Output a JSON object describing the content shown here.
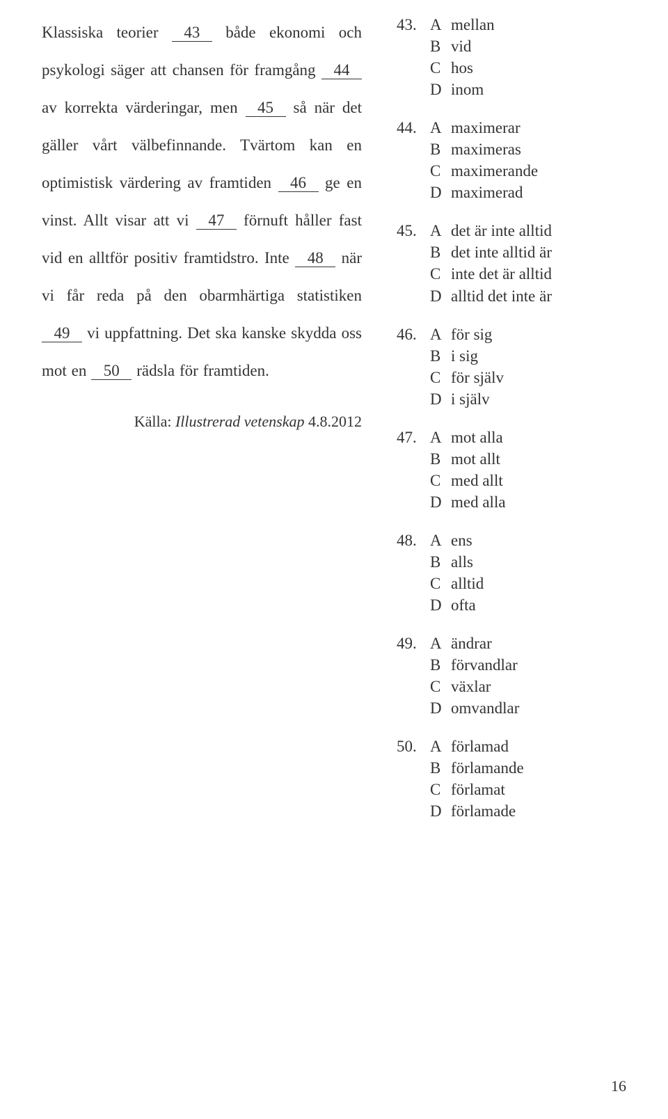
{
  "passage": {
    "segments": [
      {
        "t": "text",
        "v": "Klassiska teorier "
      },
      {
        "t": "blank",
        "v": "43"
      },
      {
        "t": "text",
        "v": " både ekonomi och psykologi säger att chansen för framgång "
      },
      {
        "t": "blank",
        "v": "44"
      },
      {
        "t": "text",
        "v": " av korrekta värderingar, men "
      },
      {
        "t": "blank",
        "v": "45"
      },
      {
        "t": "text",
        "v": " så när det gäller vårt välbefinnande. Tvärtom kan en optimistisk värdering av framtiden "
      },
      {
        "t": "blank",
        "v": "46"
      },
      {
        "t": "text",
        "v": " ge en vinst. Allt visar att vi "
      },
      {
        "t": "blank",
        "v": "47"
      },
      {
        "t": "text",
        "v": " förnuft håller fast vid en alltför positiv framtidstro. Inte "
      },
      {
        "t": "blank",
        "v": "48"
      },
      {
        "t": "text",
        "v": " när vi får reda på den obarmhärtiga statistiken "
      },
      {
        "t": "blank",
        "v": "49"
      },
      {
        "t": "text",
        "v": " vi uppfattning. Det ska kanske skydda oss mot en "
      },
      {
        "t": "blank",
        "v": "50"
      },
      {
        "t": "text",
        "v": " rädsla för framtiden."
      }
    ],
    "source_label": "Källa: ",
    "source_italic": "Illustrerad vetenskap",
    "source_rest": " 4.8.2012"
  },
  "questions": [
    {
      "num": "43.",
      "opts": [
        {
          "l": "A",
          "t": "mellan"
        },
        {
          "l": "B",
          "t": "vid"
        },
        {
          "l": "C",
          "t": "hos"
        },
        {
          "l": "D",
          "t": "inom"
        }
      ]
    },
    {
      "num": "44.",
      "opts": [
        {
          "l": "A",
          "t": "maximerar"
        },
        {
          "l": "B",
          "t": "maximeras"
        },
        {
          "l": "C",
          "t": "maximerande"
        },
        {
          "l": "D",
          "t": "maximerad"
        }
      ]
    },
    {
      "num": "45.",
      "opts": [
        {
          "l": "A",
          "t": "det är inte alltid"
        },
        {
          "l": "B",
          "t": "det inte alltid är"
        },
        {
          "l": "C",
          "t": "inte det är alltid"
        },
        {
          "l": "D",
          "t": "alltid det inte är"
        }
      ]
    },
    {
      "num": "46.",
      "opts": [
        {
          "l": "A",
          "t": "för sig"
        },
        {
          "l": "B",
          "t": "i sig"
        },
        {
          "l": "C",
          "t": "för själv"
        },
        {
          "l": "D",
          "t": "i själv"
        }
      ]
    },
    {
      "num": "47.",
      "opts": [
        {
          "l": "A",
          "t": "mot alla"
        },
        {
          "l": "B",
          "t": "mot allt"
        },
        {
          "l": "C",
          "t": "med allt"
        },
        {
          "l": "D",
          "t": "med alla"
        }
      ]
    },
    {
      "num": "48.",
      "opts": [
        {
          "l": "A",
          "t": "ens"
        },
        {
          "l": "B",
          "t": "alls"
        },
        {
          "l": "C",
          "t": "alltid"
        },
        {
          "l": "D",
          "t": "ofta"
        }
      ]
    },
    {
      "num": "49.",
      "opts": [
        {
          "l": "A",
          "t": "ändrar"
        },
        {
          "l": "B",
          "t": "förvandlar"
        },
        {
          "l": "C",
          "t": "växlar"
        },
        {
          "l": "D",
          "t": "omvandlar"
        }
      ]
    },
    {
      "num": "50.",
      "opts": [
        {
          "l": "A",
          "t": "förlamad"
        },
        {
          "l": "B",
          "t": "förlamande"
        },
        {
          "l": "C",
          "t": "förlamat"
        },
        {
          "l": "D",
          "t": "förlamade"
        }
      ]
    }
  ],
  "page_number": "16"
}
